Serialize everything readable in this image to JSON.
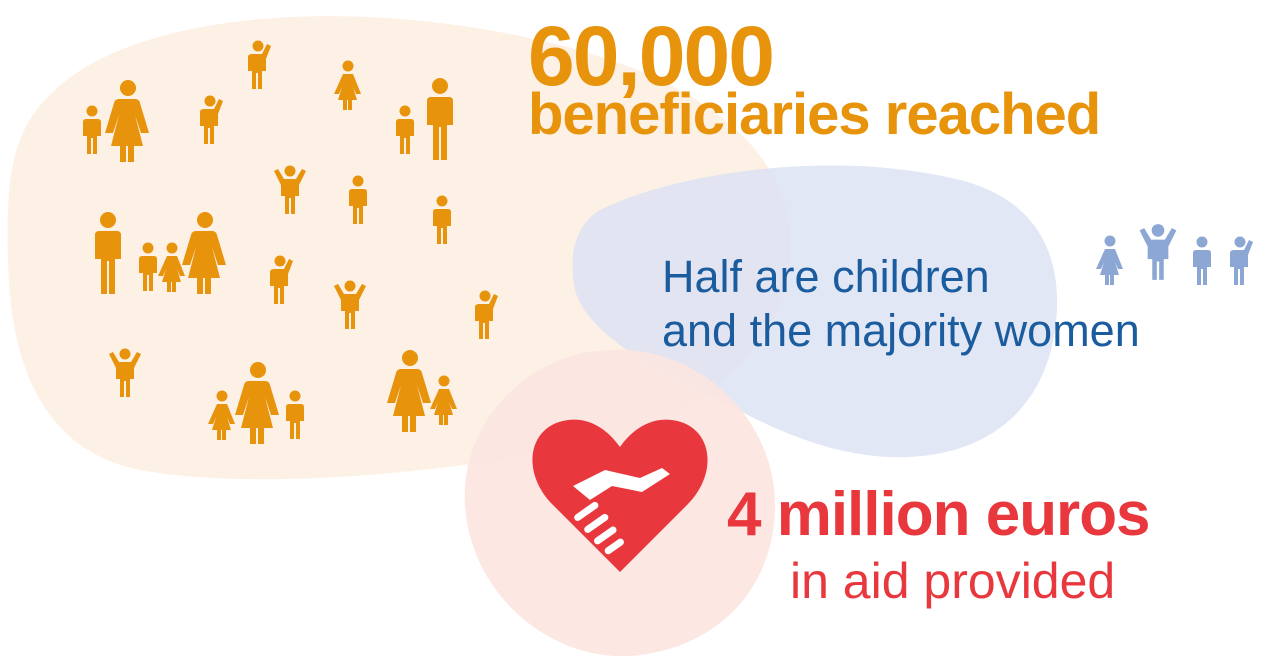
{
  "colors": {
    "orange": "#E8930C",
    "orange_blob": "#FDEFE1",
    "blue": "#1B5C9E",
    "blue_blob": "#DCE2F2",
    "blue_icon": "#8DA7D4",
    "red": "#E8383D",
    "red_blob": "#FCE3E0"
  },
  "icons": {
    "people_group": "people-crowd-icon",
    "children": "children-icon",
    "aid": "heart-handshake-icon"
  },
  "beneficiaries": {
    "number": "60,000",
    "label": "beneficiaries reached"
  },
  "demographics": {
    "line1": "Half are children",
    "line2": "and the majority women"
  },
  "aid": {
    "line1": "4 million euros",
    "line2": "in aid provided"
  }
}
